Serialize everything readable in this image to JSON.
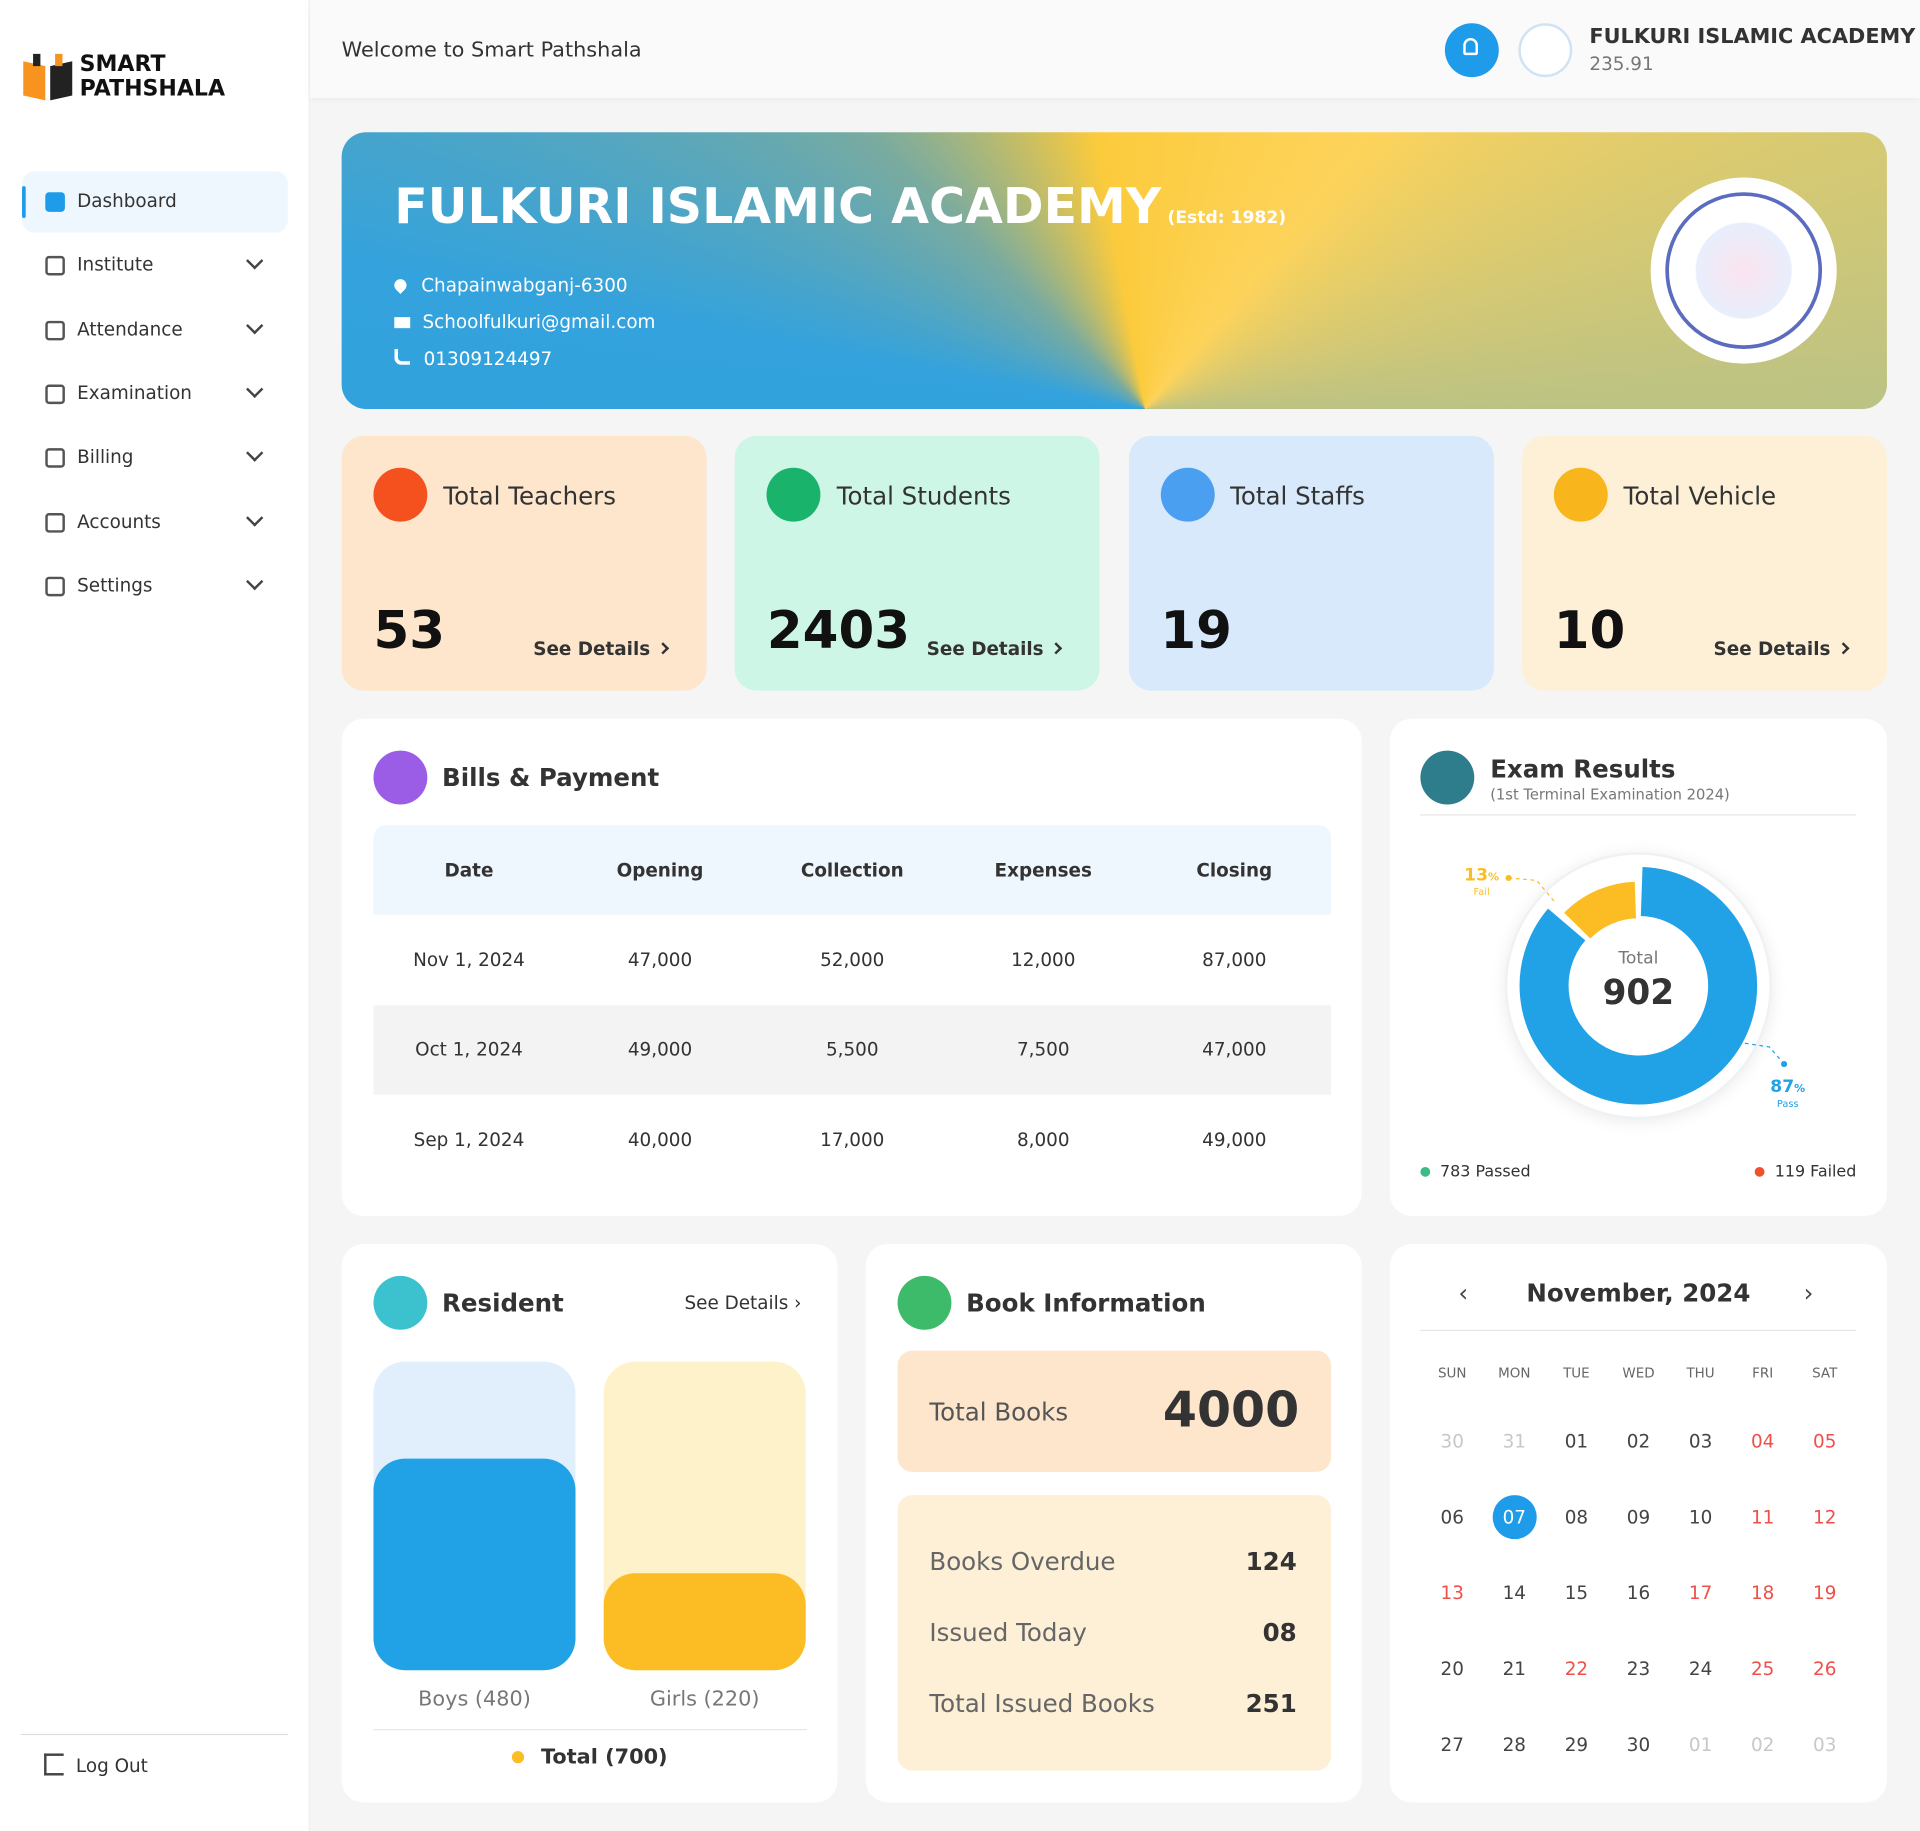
{
  "sidebar": {
    "brand": [
      "SMART",
      "PATHSHALA"
    ],
    "nav": [
      "Dashboard",
      "Institute",
      "Attendance",
      "Examination",
      "Billing",
      "Accounts",
      "Settings"
    ],
    "logout": "Log Out"
  },
  "header": {
    "welcome": "Welcome to Smart Pathshala",
    "school": "FULKURI ISLAMIC ACADEMY",
    "code": "235.91"
  },
  "banner": {
    "name": "FULKURI ISLAMIC ACADEMY",
    "established": "(Estd: 1982)",
    "address": "Chapainwabganj-6300",
    "email": "Schoolfulkuri@gmail.com",
    "phone": "01309124497"
  },
  "stats": [
    {
      "label": "Total Teachers",
      "value": 53,
      "link": "See Details",
      "bg": "#fde6cc",
      "icon": "#f4511e"
    },
    {
      "label": "Total Students",
      "value": 2403,
      "link": "See Details",
      "bg": "#cdf6e6",
      "icon": "#19b36b"
    },
    {
      "label": "Total Staffs",
      "value": 19,
      "bg": "#d7e9fb",
      "icon": "#4a9ff0"
    },
    {
      "label": "Total Vehicle",
      "value": 10,
      "link": "See Details",
      "bg": "#fdf0d7",
      "icon": "#f8b51c"
    }
  ],
  "bills": {
    "title": "Bills & Payment",
    "columns": [
      "Date",
      "Opening",
      "Collection",
      "Expenses",
      "Closing"
    ],
    "rows": [
      [
        "Nov 1, 2024",
        "47,000",
        "52,000",
        "12,000",
        "87,000"
      ],
      [
        "Oct 1, 2024",
        "49,000",
        "5,500",
        "7,500",
        "47,000"
      ],
      [
        "Sep 1, 2024",
        "40,000",
        "17,000",
        "8,000",
        "49,000"
      ]
    ]
  },
  "exam": {
    "title": "Exam Results",
    "subtitle": "(1st Terminal Examination 2024)",
    "total_label": "Total",
    "total": 902,
    "passed": 783,
    "failed": 119,
    "pass_color": "#22a2e6",
    "fail_color": "#fbbd23",
    "fail_percent": 13,
    "pass_percent": 87,
    "percent_sign": "%",
    "fail_tag": "Fail",
    "pass_tag": "Pass",
    "passed_label": "783 Passed",
    "failed_label": "119 Failed"
  },
  "resident": {
    "title": "Resident",
    "link": "See Details",
    "total": 700,
    "total_label": "Total (700)",
    "bars": [
      {
        "label": "Boys (480)",
        "value": 480,
        "color": "#22a2e6",
        "track": "#e1effc"
      },
      {
        "label": "Girls (220)",
        "value": 220,
        "color": "#fbbd23",
        "track": "#fdf2c9"
      }
    ]
  },
  "books": {
    "title": "Book Information",
    "total_label": "Total Books",
    "total": 4000,
    "rows": [
      {
        "label": "Books Overdue",
        "value": "124"
      },
      {
        "label": "Issued Today",
        "value": "08"
      },
      {
        "label": "Total Issued Books",
        "value": "251"
      }
    ]
  },
  "calendar": {
    "month": "November, 2024",
    "weekdays": [
      "SUN",
      "MON",
      "TUE",
      "WED",
      "THU",
      "FRI",
      "SAT"
    ],
    "weeks": [
      [
        {
          "d": "30",
          "s": "muted"
        },
        {
          "d": "31",
          "s": "muted"
        },
        {
          "d": "01",
          "s": "normal"
        },
        {
          "d": "02",
          "s": "normal"
        },
        {
          "d": "03",
          "s": "normal"
        },
        {
          "d": "04",
          "s": "holiday"
        },
        {
          "d": "05",
          "s": "holiday"
        }
      ],
      [
        {
          "d": "06",
          "s": "normal"
        },
        {
          "d": "07",
          "s": "selected"
        },
        {
          "d": "08",
          "s": "normal"
        },
        {
          "d": "09",
          "s": "normal"
        },
        {
          "d": "10",
          "s": "normal"
        },
        {
          "d": "11",
          "s": "holiday"
        },
        {
          "d": "12",
          "s": "holiday"
        }
      ],
      [
        {
          "d": "13",
          "s": "holiday"
        },
        {
          "d": "14",
          "s": "normal"
        },
        {
          "d": "15",
          "s": "normal"
        },
        {
          "d": "16",
          "s": "normal"
        },
        {
          "d": "17",
          "s": "holiday"
        },
        {
          "d": "18",
          "s": "holiday"
        },
        {
          "d": "19",
          "s": "holiday"
        }
      ],
      [
        {
          "d": "20",
          "s": "normal"
        },
        {
          "d": "21",
          "s": "normal"
        },
        {
          "d": "22",
          "s": "holiday"
        },
        {
          "d": "23",
          "s": "normal"
        },
        {
          "d": "24",
          "s": "normal"
        },
        {
          "d": "25",
          "s": "holiday"
        },
        {
          "d": "26",
          "s": "holiday"
        }
      ],
      [
        {
          "d": "27",
          "s": "normal"
        },
        {
          "d": "28",
          "s": "normal"
        },
        {
          "d": "29",
          "s": "normal"
        },
        {
          "d": "30",
          "s": "normal"
        },
        {
          "d": "01",
          "s": "muted"
        },
        {
          "d": "02",
          "s": "muted"
        },
        {
          "d": "03",
          "s": "muted"
        }
      ]
    ]
  }
}
